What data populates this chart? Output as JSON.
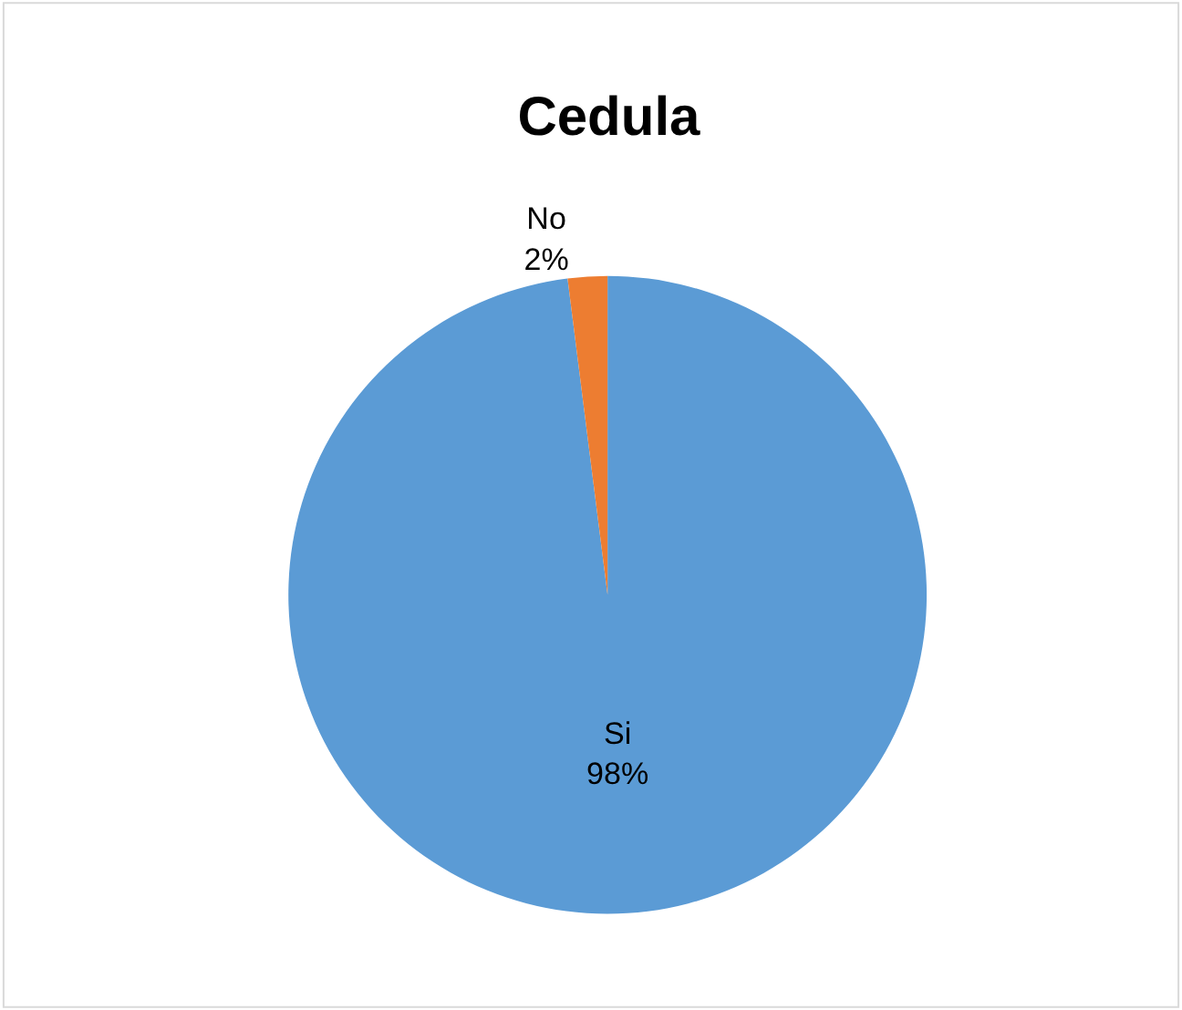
{
  "chart_data": {
    "type": "pie",
    "title": "Cedula",
    "categories": [
      "Si",
      "No"
    ],
    "values": [
      98,
      2
    ],
    "value_labels": [
      "98%",
      "2%"
    ],
    "colors": [
      "#5b9bd5",
      "#ed7d31"
    ],
    "legend": false
  }
}
